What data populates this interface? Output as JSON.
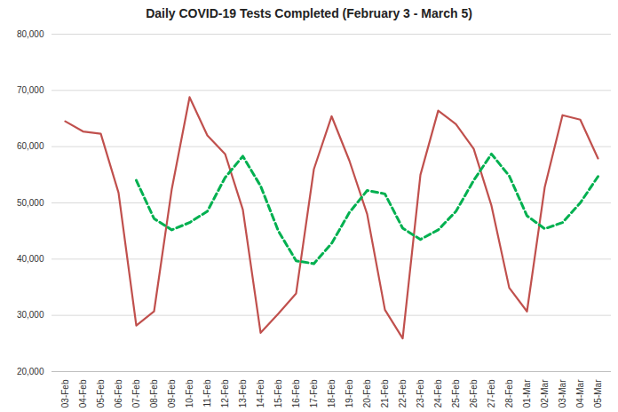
{
  "chart_data": {
    "type": "line",
    "title": "Daily COVID-19 Tests Completed (February 3 - March 5)",
    "categories": [
      "03-Feb",
      "04-Feb",
      "05-Feb",
      "06-Feb",
      "07-Feb",
      "08-Feb",
      "09-Feb",
      "10-Feb",
      "11-Feb",
      "12-Feb",
      "13-Feb",
      "14-Feb",
      "15-Feb",
      "16-Feb",
      "17-Feb",
      "18-Feb",
      "19-Feb",
      "20-Feb",
      "21-Feb",
      "22-Feb",
      "23-Feb",
      "24-Feb",
      "25-Feb",
      "26-Feb",
      "27-Feb",
      "28-Feb",
      "01-Mar",
      "02-Mar",
      "03-Mar",
      "04-Mar",
      "05-Mar"
    ],
    "series": [
      {
        "color": "#c0504d",
        "line_style": "solid",
        "values": [
          64500,
          62700,
          62300,
          51800,
          28200,
          30700,
          52500,
          68800,
          62000,
          58700,
          48800,
          26900,
          30300,
          33900,
          56000,
          65400,
          57500,
          48000,
          31000,
          25900,
          55000,
          66400,
          64000,
          59600,
          49500,
          34900,
          30700,
          52800,
          65600,
          64800,
          57900
        ]
      },
      {
        "color": "#00b050",
        "line_style": "dashed",
        "values": [
          null,
          null,
          null,
          null,
          54000,
          47200,
          45200,
          46500,
          48500,
          54500,
          58300,
          53000,
          45000,
          39700,
          39200,
          42800,
          48300,
          52200,
          51600,
          45500,
          43500,
          45200,
          48500,
          54000,
          58700,
          54800,
          47700,
          45400,
          46500,
          50000,
          54700
        ]
      }
    ],
    "ylim": [
      20000,
      80000
    ],
    "yticks": [
      {
        "value": 20000,
        "label": "20,000"
      },
      {
        "value": 30000,
        "label": "30,000"
      },
      {
        "value": 40000,
        "label": "40,000"
      },
      {
        "value": 50000,
        "label": "50,000"
      },
      {
        "value": 60000,
        "label": "60,000"
      },
      {
        "value": 70000,
        "label": "70,000"
      },
      {
        "value": 80000,
        "label": "80,000"
      }
    ],
    "grid": true
  }
}
